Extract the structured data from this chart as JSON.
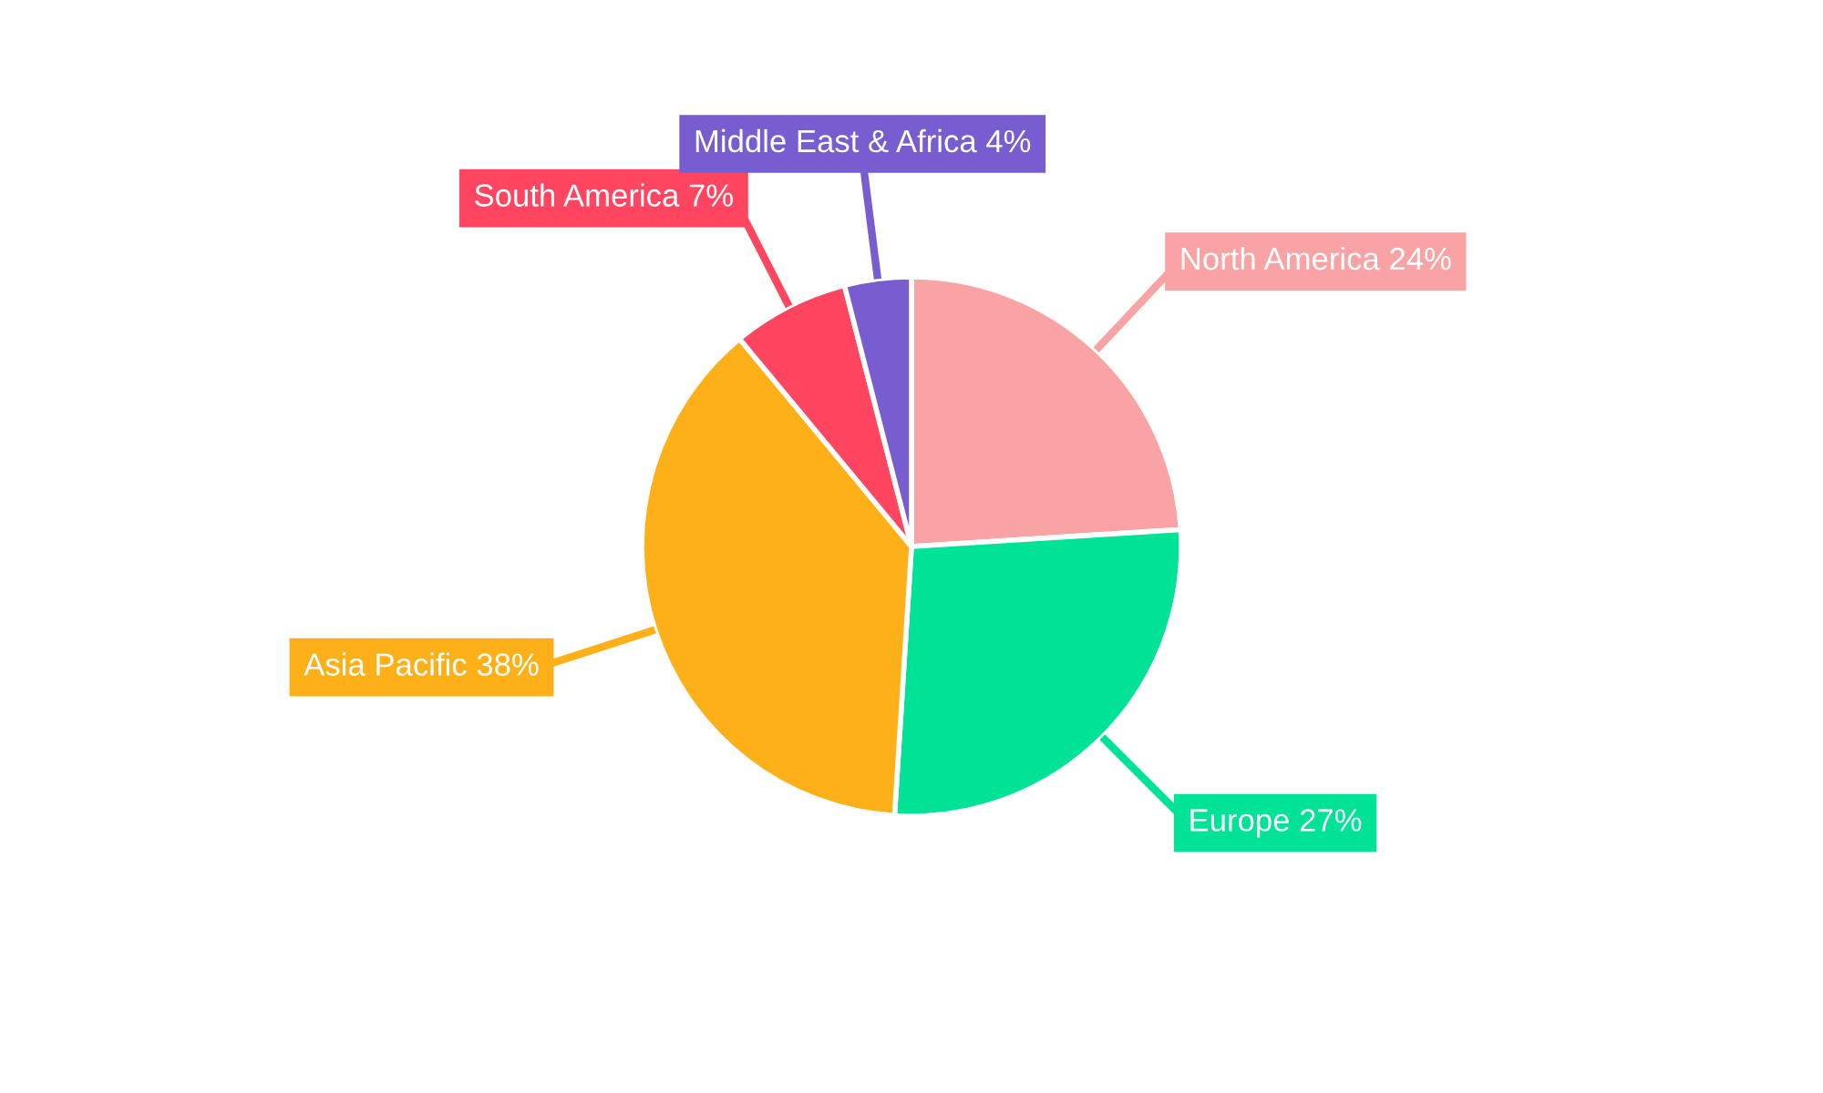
{
  "chart_data": {
    "type": "pie",
    "categories": [
      "North America",
      "Europe",
      "Asia Pacific",
      "South America",
      "Middle East & Africa"
    ],
    "values": [
      24,
      27,
      38,
      7,
      4
    ],
    "value_labels": [
      "24%",
      "27%",
      "38%",
      "7%",
      "4%"
    ],
    "colors": [
      "#f9a3a4",
      "#00e396",
      "#feb019",
      "#ff4560",
      "#775dd0"
    ],
    "legend": false
  }
}
